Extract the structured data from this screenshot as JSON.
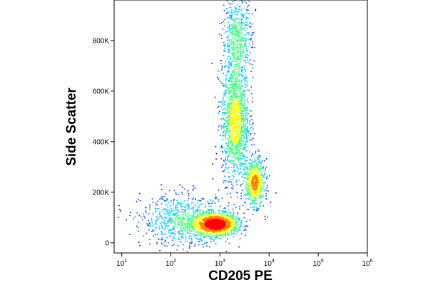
{
  "chart_data": {
    "type": "scatter",
    "style": "density-colored flow cytometry dot plot",
    "xlabel": "CD205 PE",
    "ylabel": "Side Scatter",
    "x_scale": "log",
    "xlim": [
      7,
      1000000
    ],
    "ylim": [
      -40000,
      960000
    ],
    "x_ticks": [
      {
        "base": "10",
        "exp": "1",
        "value": 10
      },
      {
        "base": "10",
        "exp": "2",
        "value": 100
      },
      {
        "base": "10",
        "exp": "3",
        "value": 1000
      },
      {
        "base": "10",
        "exp": "4",
        "value": 10000
      },
      {
        "base": "10",
        "exp": "5",
        "value": 100000
      },
      {
        "base": "10",
        "exp": "6",
        "value": 1000000
      }
    ],
    "y_ticks": [
      {
        "label": "0",
        "value": 0
      },
      {
        "label": "200K",
        "value": 200000
      },
      {
        "label": "400K",
        "value": 400000
      },
      {
        "label": "600K",
        "value": 600000
      },
      {
        "label": "800K",
        "value": 800000
      }
    ],
    "grid": false,
    "legend": "none",
    "populations": [
      {
        "x_center": 800,
        "y_center": 75000,
        "x_log_spread": 0.22,
        "y_spread": 22000,
        "weight": 0.3
      },
      {
        "x_center": 2000,
        "y_center": 480000,
        "x_log_spread": 0.14,
        "y_spread": 110000,
        "weight": 0.28
      },
      {
        "x_center": 5000,
        "y_center": 240000,
        "x_log_spread": 0.1,
        "y_spread": 45000,
        "weight": 0.14
      },
      {
        "x_center": 2200,
        "y_center": 800000,
        "x_log_spread": 0.15,
        "y_spread": 90000,
        "weight": 0.12
      },
      {
        "x_center": 200,
        "y_center": 90000,
        "x_log_spread": 0.45,
        "y_spread": 50000,
        "weight": 0.16
      }
    ],
    "density_colors": [
      "#0000cc",
      "#0050ff",
      "#00c8ff",
      "#40ff80",
      "#ffff00",
      "#ff8000",
      "#ff0000"
    ]
  }
}
